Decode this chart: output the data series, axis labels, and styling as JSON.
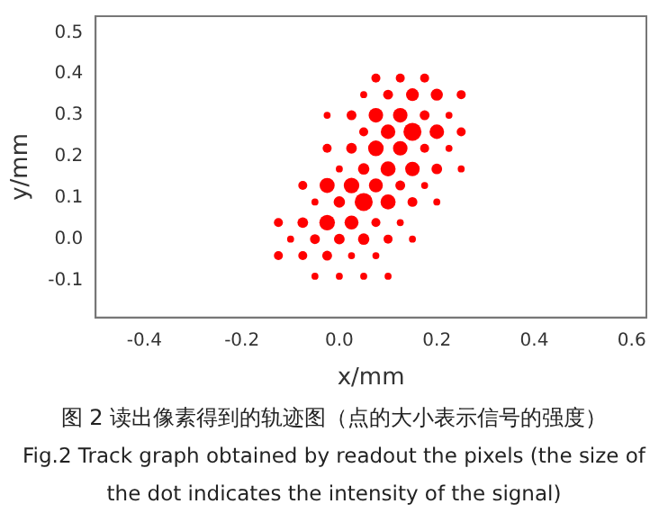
{
  "chart_data": {
    "type": "bubble",
    "xlabel": "x/mm",
    "ylabel": "y/mm",
    "annotations": [
      "图 2 读出像素得到的轨迹图（点的大小表示信号的强度）",
      "Fig.2 Track graph obtained by readout the pixels (the size of the dot indicates the intensity of the signal)"
    ],
    "series": [
      {
        "color": "#ff0000",
        "x": [
          0.075,
          0.125,
          0.175,
          0.05,
          0.1,
          0.15,
          0.2,
          0.25,
          -0.025,
          0.025,
          0.075,
          0.125,
          0.175,
          0.225,
          0.05,
          0.1,
          0.15,
          0.2,
          0.25,
          -0.025,
          0.025,
          0.075,
          0.125,
          0.175,
          0.225,
          0,
          0.05,
          0.1,
          0.15,
          0.2,
          0.25,
          -0.075,
          -0.025,
          0.025,
          0.075,
          0.125,
          0.175,
          -0.05,
          0,
          0.05,
          0.1,
          0.15,
          0.2,
          -0.125,
          -0.075,
          -0.025,
          0.025,
          0.075,
          0.125,
          -0.1,
          -0.05,
          0,
          0.05,
          0.1,
          0.15,
          -0.125,
          -0.075,
          -0.025,
          0.025,
          0.075,
          -0.05,
          0,
          0.05,
          0.1
        ],
        "values": [
          0.39,
          0.39,
          0.39,
          0.35,
          0.35,
          0.35,
          0.35,
          0.35,
          0.3,
          0.3,
          0.3,
          0.3,
          0.3,
          0.3,
          0.26,
          0.26,
          0.26,
          0.26,
          0.26,
          0.22,
          0.22,
          0.22,
          0.22,
          0.22,
          0.22,
          0.17,
          0.17,
          0.17,
          0.17,
          0.17,
          0.17,
          0.13,
          0.13,
          0.13,
          0.13,
          0.13,
          0.13,
          0.09,
          0.09,
          0.09,
          0.09,
          0.09,
          0.09,
          0.04,
          0.04,
          0.04,
          0.04,
          0.04,
          0.04,
          0,
          0,
          0,
          0,
          0,
          0,
          -0.04,
          -0.04,
          -0.04,
          -0.04,
          -0.04,
          -0.09,
          -0.09,
          -0.09,
          -0.09
        ],
        "sizes": [
          0.25,
          0.25,
          0.25,
          0.15,
          0.3,
          0.5,
          0.45,
          0.25,
          0.15,
          0.3,
          0.65,
          0.65,
          0.3,
          0.15,
          0.25,
          0.65,
          1,
          0.65,
          0.25,
          0.25,
          0.35,
          0.75,
          0.65,
          0.25,
          0.15,
          0.15,
          0.4,
          0.7,
          0.65,
          0.35,
          0.15,
          0.25,
          0.7,
          0.75,
          0.6,
          0.3,
          0.15,
          0.15,
          0.4,
          1,
          0.7,
          0.3,
          0.15,
          0.25,
          0.35,
          0.75,
          0.6,
          0.25,
          0.15,
          0.15,
          0.3,
          0.35,
          0.4,
          0.25,
          0.15,
          0.25,
          0.25,
          0.3,
          0.15,
          0.15,
          0.15,
          0.15,
          0.15,
          0.15
        ]
      }
    ],
    "xlim": [
      -0.5,
      0.63
    ],
    "ylim": [
      -0.19,
      0.54
    ],
    "xticks": [
      -0.4,
      -0.2,
      {
        "value": 0,
        "label": "0.0"
      },
      0.2,
      0.4,
      0.6
    ],
    "yticks": [
      -0.1,
      {
        "value": 0,
        "label": "0.0"
      },
      0.1,
      0.2,
      0.3,
      0.4,
      0.5
    ],
    "grid": false,
    "legend": false
  }
}
